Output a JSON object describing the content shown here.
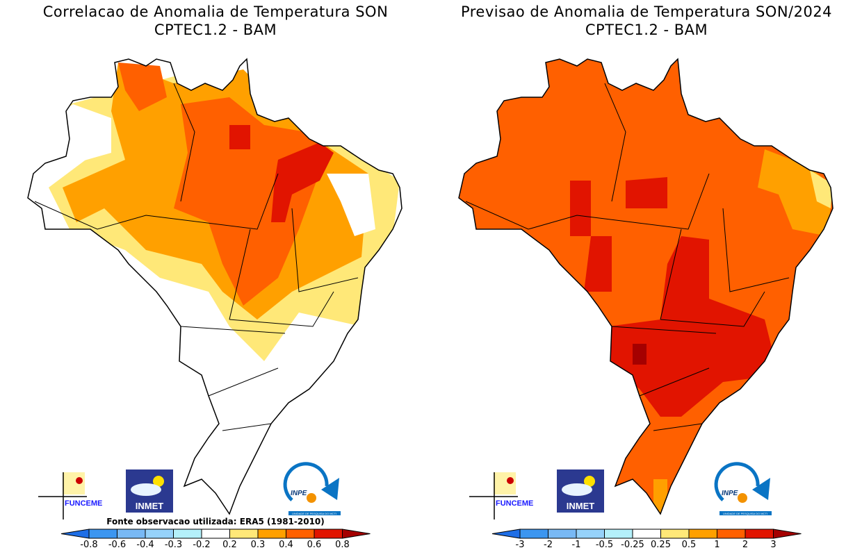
{
  "left_panel": {
    "title_line1": "Correlacao de Anomalia de Temperatura SON",
    "title_line2": "CPTEC1.2 - BAM",
    "source_note": "Fonte observacao utilizada: ERA5 (1981-2010)",
    "colorbar_labels": [
      "-0.8",
      "-0.6",
      "-0.4",
      "-0.3",
      "-0.2",
      "0.2",
      "0.3",
      "0.4",
      "0.6",
      "0.8"
    ]
  },
  "right_panel": {
    "title_line1": "Previsao de Anomalia de Temperatura SON/2024",
    "title_line2": "CPTEC1.2 - BAM",
    "colorbar_labels": [
      "-3",
      "-2",
      "-1",
      "-0.5",
      "-0.25",
      "0.25",
      "0.5",
      "1",
      "2",
      "3"
    ]
  },
  "colorbar_colors": [
    "#1e6ee6",
    "#3c96f0",
    "#78b9f5",
    "#96d2fa",
    "#b4f0fa",
    "#ffffff",
    "#ffe878",
    "#ffa000",
    "#ff6000",
    "#e11400",
    "#a50000"
  ],
  "logos": {
    "funceme": "FUNCEME",
    "inmet": "INMET",
    "inpe": "INPE",
    "inpe_subtitle": "UNIDADE DE PESQUISA DO MCTI"
  }
}
